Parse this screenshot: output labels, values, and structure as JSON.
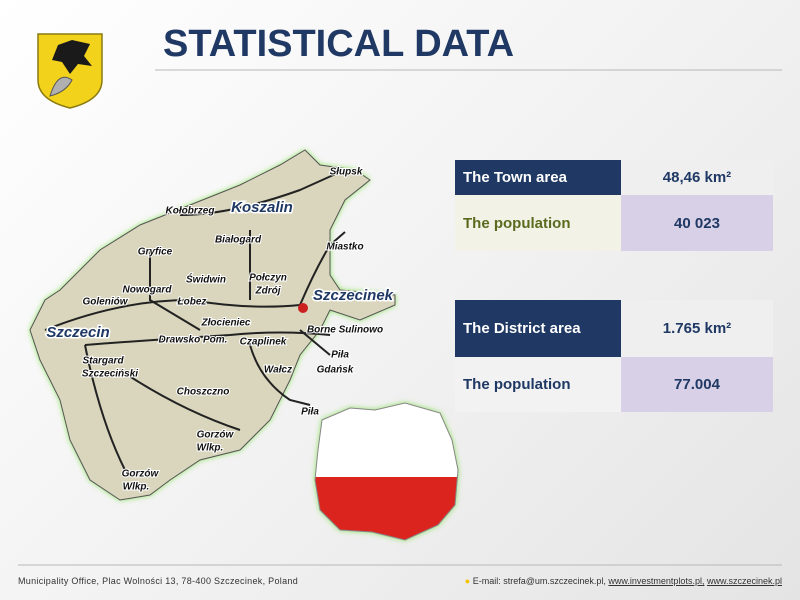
{
  "header": {
    "title": "STATISTICAL DATA"
  },
  "town_table": {
    "rows": [
      [
        "The Town area",
        "48,46 km²"
      ],
      [
        "The population",
        "40 023"
      ]
    ]
  },
  "district_table": {
    "rows": [
      [
        "The District area",
        "1.765 km²"
      ],
      [
        "The population",
        "77.004"
      ]
    ]
  },
  "map_labels": [
    "Słupsk",
    "Kołobrzeg",
    "Koszalin",
    "Miastko",
    "Gryfice",
    "Białogard",
    "Świdwin",
    "Połczyn",
    "Zdrój",
    "Nowogard",
    "Goleniów",
    "Łobez",
    "Szczecinek",
    "Szczecin",
    "Złocieniec",
    "Borne Sulinowo",
    "Drawsko Pom.",
    "Czaplinek",
    "Piła",
    "Gdańsk",
    "Stargard",
    "Szczeciński",
    "Wałcz",
    "Choszczno",
    "Piła",
    "Gorzów",
    "Wlkp.",
    "Gorzów",
    "Wlkp."
  ],
  "footer": {
    "address": "Municipality Office, Plac Wolności 13, 78-400 Szczecinek, Poland",
    "email": "E-mail: strefa@um.szczecinek.pl,",
    "links": [
      "www.investmentplots.pl,",
      "www.szczecinek.pl"
    ]
  }
}
